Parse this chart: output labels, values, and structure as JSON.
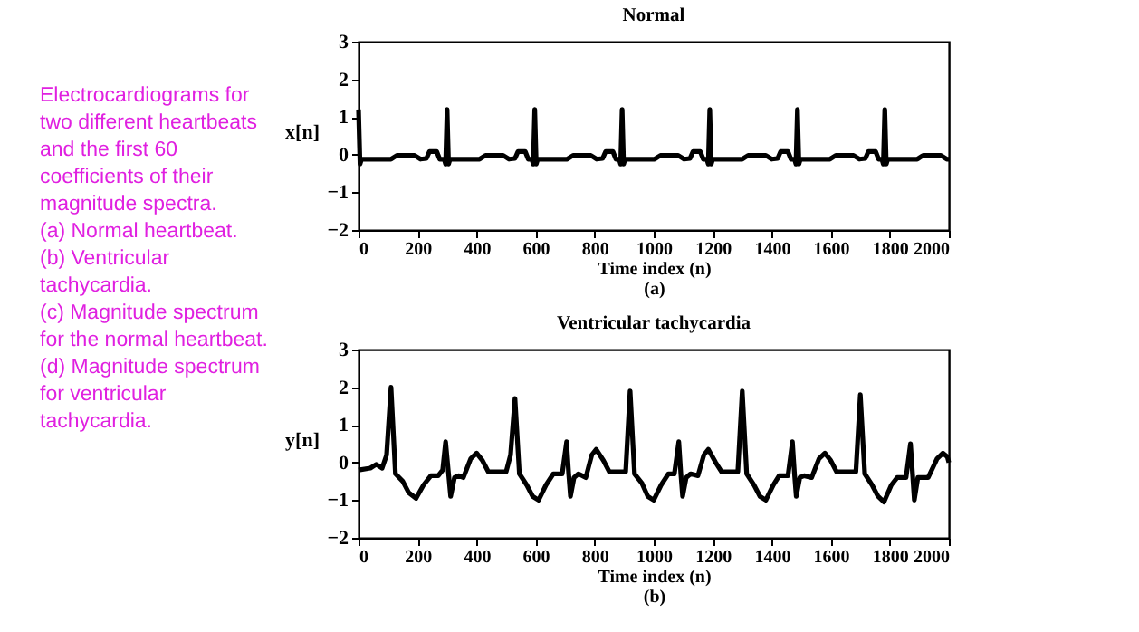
{
  "chart_data": [
    {
      "type": "other",
      "annotations": [
        "Electrocardiograms for two different heartbeats and the first 60 coefficients of their magnitude spectra.",
        "(a) Normal heartbeat.",
        "(b) Ventricular tachycardia.",
        "(c) Magnitude spectrum for the normal heartbeat.",
        "(d) Magnitude spectrum for ventricular tachycardia."
      ]
    },
    {
      "type": "line",
      "title": "Normal",
      "xlabel": "Time index (n)",
      "ylabel": "x[n]",
      "annotations": [
        "(a)"
      ],
      "xlim": [
        0,
        2000
      ],
      "xticks": [
        0,
        200,
        400,
        600,
        800,
        1000,
        1200,
        1400,
        1600,
        1800,
        2000
      ],
      "ylim": [
        -2,
        3
      ],
      "yticks": [
        -2,
        -1,
        0,
        1,
        2,
        3
      ],
      "grid": false,
      "series": [
        {
          "color": "#000000",
          "x": [
            0,
            5,
            10,
            110,
            130,
            190,
            210,
            230,
            240,
            265,
            275,
            290,
            295,
            300,
            305,
            310,
            410,
            430,
            490,
            510,
            530,
            540,
            565,
            575,
            587,
            592,
            597,
            602,
            607,
            707,
            727,
            787,
            807,
            827,
            837,
            862,
            872,
            883,
            888,
            893,
            898,
            903,
            1003,
            1023,
            1083,
            1103,
            1123,
            1133,
            1158,
            1168,
            1180,
            1185,
            1190,
            1195,
            1200,
            1300,
            1320,
            1380,
            1400,
            1420,
            1430,
            1455,
            1465,
            1477,
            1482,
            1487,
            1492,
            1497,
            1597,
            1617,
            1677,
            1697,
            1717,
            1727,
            1752,
            1762,
            1773,
            1778,
            1783,
            1788,
            1793,
            1893,
            1913,
            1973,
            1993,
            2000
          ],
          "values": [
            1.2,
            -0.25,
            -0.12,
            -0.12,
            -0.02,
            -0.02,
            -0.12,
            -0.1,
            0.08,
            0.08,
            -0.12,
            -0.12,
            -0.25,
            1.2,
            -0.25,
            -0.12,
            -0.12,
            -0.02,
            -0.02,
            -0.12,
            -0.1,
            0.08,
            0.08,
            -0.12,
            -0.12,
            -0.25,
            1.2,
            -0.25,
            -0.12,
            -0.12,
            -0.02,
            -0.02,
            -0.12,
            -0.1,
            0.08,
            0.08,
            -0.12,
            -0.12,
            -0.25,
            1.2,
            -0.25,
            -0.12,
            -0.12,
            -0.02,
            -0.02,
            -0.12,
            -0.1,
            0.08,
            0.08,
            -0.12,
            -0.12,
            -0.25,
            1.2,
            -0.25,
            -0.12,
            -0.12,
            -0.02,
            -0.02,
            -0.12,
            -0.1,
            0.08,
            0.08,
            -0.12,
            -0.12,
            -0.25,
            1.2,
            -0.25,
            -0.12,
            -0.12,
            -0.02,
            -0.02,
            -0.12,
            -0.1,
            0.08,
            0.08,
            -0.12,
            -0.12,
            -0.25,
            1.2,
            -0.25,
            -0.12,
            -0.12,
            -0.02,
            -0.02,
            -0.12,
            -0.12
          ]
        }
      ]
    },
    {
      "type": "line",
      "title": "Ventricular tachycardia",
      "xlabel": "Time index (n)",
      "ylabel": "y[n]",
      "annotations": [
        "(b)"
      ],
      "xlim": [
        0,
        2000
      ],
      "xticks": [
        0,
        200,
        400,
        600,
        800,
        1000,
        1200,
        1400,
        1600,
        1800,
        2000
      ],
      "ylim": [
        -2,
        3
      ],
      "yticks": [
        -2,
        -1,
        0,
        1,
        2,
        3
      ],
      "grid": false,
      "series": [
        {
          "color": "#000000",
          "x": [
            0,
            40,
            60,
            80,
            95,
            110,
            125,
            150,
            170,
            195,
            220,
            245,
            270,
            285,
            295,
            305,
            312,
            325,
            340,
            355,
            380,
            400,
            420,
            440,
            500,
            515,
            530,
            545,
            570,
            590,
            610,
            635,
            660,
            690,
            705,
            712,
            718,
            730,
            745,
            770,
            790,
            805,
            830,
            850,
            905,
            920,
            935,
            960,
            980,
            1000,
            1025,
            1050,
            1070,
            1085,
            1092,
            1098,
            1110,
            1125,
            1150,
            1170,
            1185,
            1210,
            1230,
            1285,
            1300,
            1315,
            1340,
            1360,
            1380,
            1405,
            1425,
            1455,
            1470,
            1477,
            1483,
            1495,
            1510,
            1535,
            1560,
            1580,
            1600,
            1620,
            1685,
            1700,
            1715,
            1740,
            1760,
            1780,
            1805,
            1825,
            1855,
            1870,
            1877,
            1883,
            1895,
            1910,
            1930,
            1960,
            1980,
            1995,
            2000
          ],
          "values": [
            -0.2,
            -0.15,
            -0.05,
            -0.15,
            0.2,
            2.0,
            -0.3,
            -0.5,
            -0.8,
            -0.95,
            -0.6,
            -0.35,
            -0.35,
            -0.2,
            0.55,
            -0.3,
            -0.9,
            -0.4,
            -0.35,
            -0.4,
            0.1,
            0.25,
            0.05,
            -0.25,
            -0.25,
            0.2,
            1.7,
            -0.3,
            -0.6,
            -0.9,
            -1.0,
            -0.6,
            -0.3,
            -0.3,
            0.55,
            -0.3,
            -0.9,
            -0.4,
            -0.3,
            -0.4,
            0.2,
            0.35,
            0.05,
            -0.25,
            -0.25,
            1.9,
            -0.3,
            -0.55,
            -0.9,
            -1.0,
            -0.6,
            -0.3,
            -0.3,
            0.55,
            -0.3,
            -0.9,
            -0.4,
            -0.3,
            -0.35,
            0.2,
            0.35,
            0.0,
            -0.25,
            -0.25,
            1.9,
            -0.3,
            -0.6,
            -0.9,
            -1.0,
            -0.6,
            -0.35,
            -0.35,
            0.55,
            -0.3,
            -0.9,
            -0.4,
            -0.35,
            -0.4,
            0.1,
            0.25,
            0.05,
            -0.25,
            -0.25,
            1.8,
            -0.3,
            -0.6,
            -0.9,
            -1.05,
            -0.6,
            -0.4,
            -0.4,
            0.5,
            -0.3,
            -1.0,
            -0.4,
            -0.4,
            -0.4,
            0.1,
            0.25,
            0.15,
            0.0
          ]
        }
      ]
    }
  ]
}
